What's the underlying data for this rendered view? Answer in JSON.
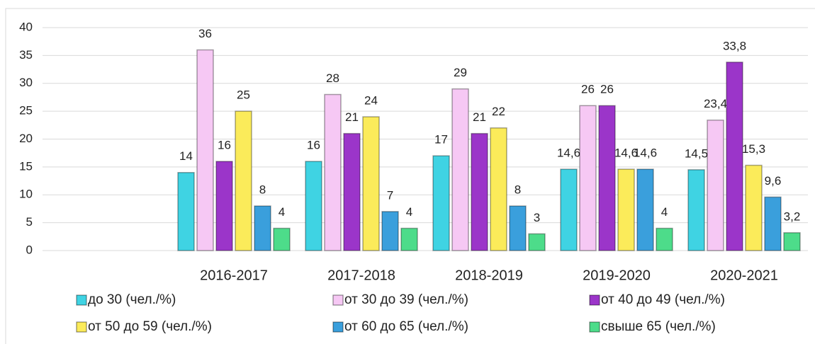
{
  "chart_data": {
    "type": "bar",
    "categories": [
      null,
      "2016-2017",
      "2017-2018",
      "2018-2019",
      "2019-2020",
      "2020-2021"
    ],
    "series": [
      {
        "name": "до 30 (чел./%)",
        "color": "#3fd3e3",
        "values": [
          null,
          14,
          16,
          17,
          14.6,
          14.5
        ],
        "value_labels": [
          null,
          "14",
          "16",
          "17",
          "14,6",
          "14,5"
        ]
      },
      {
        "name": "от 30 до 39 (чел./%)",
        "color": "#f6c8f4",
        "values": [
          null,
          36,
          28,
          29,
          26,
          23.4
        ],
        "value_labels": [
          null,
          "36",
          "28",
          "29",
          "26",
          "23,4"
        ]
      },
      {
        "name": "от 40 до 49 (чел./%)",
        "color": "#9b35c9",
        "values": [
          null,
          16,
          21,
          21,
          26,
          33.8
        ],
        "value_labels": [
          null,
          "16",
          "21",
          "21",
          "26",
          "33,8"
        ]
      },
      {
        "name": "от 50 до 59 (чел./%)",
        "color": "#fbeb5a",
        "values": [
          null,
          25,
          24,
          22,
          14.6,
          15.3
        ],
        "value_labels": [
          null,
          "25",
          "24",
          "22",
          "14,6",
          "15,3"
        ]
      },
      {
        "name": "от 60 до 65 (чел./%)",
        "color": "#3a9fdc",
        "values": [
          null,
          8,
          7,
          8,
          14.6,
          9.6
        ],
        "value_labels": [
          null,
          "8",
          "7",
          "8",
          "14,6",
          "9,6"
        ]
      },
      {
        "name": "свыше 65 (чел./%)",
        "color": "#4ddc8a",
        "values": [
          null,
          4,
          4,
          3,
          4,
          3.2
        ],
        "value_labels": [
          null,
          "4",
          "4",
          "3",
          "4",
          "3,2"
        ]
      }
    ],
    "ylim": [
      0,
      40
    ],
    "yticks": [
      0,
      5,
      10,
      15,
      20,
      25,
      30,
      35,
      40
    ],
    "grid": true,
    "legend": "bottom"
  }
}
